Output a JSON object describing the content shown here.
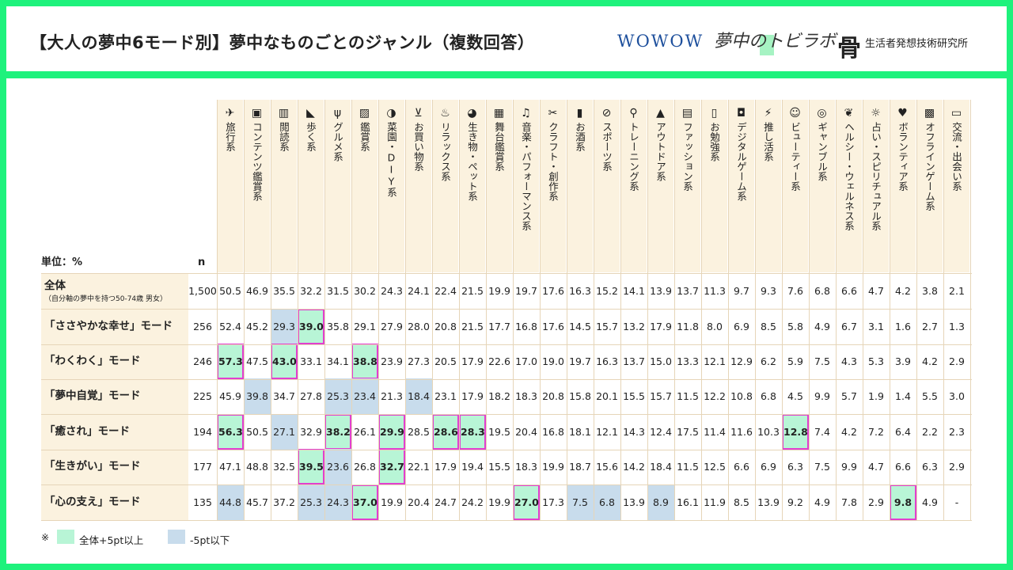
{
  "title": "【大人の夢中6モード別】夢中なものごとのジャンル（複数回答）",
  "logos": {
    "wowow": "WOWOW",
    "lab": "夢中のトビラボ",
    "hakuhodo_mark": "⻣",
    "hakuhodo": "生活者発想技術研究所"
  },
  "colors": {
    "frame": "#1ef27c",
    "header_bg": "#fbf2df",
    "high": "#b8f5d6",
    "low": "#c8dcec",
    "high_border": "#e23fcf"
  },
  "unit": "単位：%",
  "n_label": "n",
  "legend": {
    "note": "※",
    "high": "全体+5pt以上",
    "low": "-5pt以下"
  },
  "chart_data": {
    "type": "table",
    "columns": [
      {
        "label": "旅行系",
        "icon": "airplane-icon"
      },
      {
        "label": "コンテンツ鑑賞系",
        "icon": "film-icon"
      },
      {
        "label": "閲読系",
        "icon": "book-icon"
      },
      {
        "label": "歩く系",
        "icon": "shoe-icon"
      },
      {
        "label": "グルメ系",
        "icon": "cutlery-icon"
      },
      {
        "label": "鑑賞系",
        "icon": "picture-icon"
      },
      {
        "label": "菜園・DIY系",
        "icon": "watering-can-icon"
      },
      {
        "label": "お買い物系",
        "icon": "cart-icon"
      },
      {
        "label": "リラックス系",
        "icon": "hot-spring-icon"
      },
      {
        "label": "生き物・ペット系",
        "icon": "pet-icon"
      },
      {
        "label": "舞台鑑賞系",
        "icon": "theater-icon"
      },
      {
        "label": "音楽・パフォーマンス系",
        "icon": "music-note-icon"
      },
      {
        "label": "クラフト・創作系",
        "icon": "scissors-icon"
      },
      {
        "label": "お酒系",
        "icon": "beer-icon"
      },
      {
        "label": "スポーツ系",
        "icon": "racket-icon"
      },
      {
        "label": "トレーニング系",
        "icon": "runner-icon"
      },
      {
        "label": "アウトドア系",
        "icon": "mountain-icon"
      },
      {
        "label": "ファッション系",
        "icon": "shirt-icon"
      },
      {
        "label": "お勉強系",
        "icon": "notebook-icon"
      },
      {
        "label": "デジタルゲーム系",
        "icon": "gamepad-icon"
      },
      {
        "label": "推し活系",
        "icon": "penlight-icon"
      },
      {
        "label": "ビューティー系",
        "icon": "face-icon"
      },
      {
        "label": "ギャンブル系",
        "icon": "coins-icon"
      },
      {
        "label": "ヘルシー・ウェルネス系",
        "icon": "leaf-icon"
      },
      {
        "label": "占い・スピリチュアル系",
        "icon": "sun-icon"
      },
      {
        "label": "ボランティア系",
        "icon": "heart-hand-icon"
      },
      {
        "label": "オフラインゲーム系",
        "icon": "board-game-icon"
      },
      {
        "label": "交流・出会い系",
        "icon": "chat-icon"
      }
    ],
    "rows": [
      {
        "label": "全体",
        "sublabel": "（自分軸の夢中を持つ50-74歳 男女）",
        "n": "1,500",
        "values": [
          "50.5",
          "46.9",
          "35.5",
          "32.2",
          "31.5",
          "30.2",
          "24.3",
          "24.1",
          "22.4",
          "21.5",
          "19.9",
          "19.7",
          "17.6",
          "16.3",
          "15.2",
          "14.1",
          "13.9",
          "13.7",
          "11.3",
          "9.7",
          "9.3",
          "7.6",
          "6.8",
          "6.6",
          "4.7",
          "4.2",
          "3.8",
          "2.1"
        ],
        "high": [],
        "low": []
      },
      {
        "label": "「ささやかな幸せ」モード",
        "n": "256",
        "values": [
          "52.4",
          "45.2",
          "29.3",
          "39.0",
          "35.8",
          "29.1",
          "27.9",
          "28.0",
          "20.8",
          "21.5",
          "17.7",
          "16.8",
          "17.6",
          "14.5",
          "15.7",
          "13.2",
          "17.9",
          "11.8",
          "8.0",
          "6.9",
          "8.5",
          "5.8",
          "4.9",
          "6.7",
          "3.1",
          "1.6",
          "2.7",
          "1.3"
        ],
        "high": [
          3
        ],
        "low": [
          2
        ]
      },
      {
        "label": "「わくわく」モード",
        "n": "246",
        "values": [
          "57.3",
          "47.5",
          "43.0",
          "33.1",
          "34.1",
          "38.8",
          "23.9",
          "27.3",
          "20.5",
          "17.9",
          "22.6",
          "17.0",
          "19.0",
          "19.7",
          "16.3",
          "13.7",
          "15.0",
          "13.3",
          "12.1",
          "12.9",
          "6.2",
          "5.9",
          "7.5",
          "4.3",
          "5.3",
          "3.9",
          "4.2",
          "2.9"
        ],
        "high": [
          0,
          2,
          5
        ],
        "low": []
      },
      {
        "label": "「夢中自覚」モード",
        "n": "225",
        "values": [
          "45.9",
          "39.8",
          "34.7",
          "27.8",
          "25.3",
          "23.4",
          "21.3",
          "18.4",
          "23.1",
          "17.9",
          "18.2",
          "18.3",
          "20.8",
          "15.8",
          "20.1",
          "15.5",
          "15.7",
          "11.5",
          "12.2",
          "10.8",
          "6.8",
          "4.5",
          "9.9",
          "5.7",
          "1.9",
          "1.4",
          "5.5",
          "3.0"
        ],
        "high": [],
        "low": [
          1,
          4,
          5,
          7
        ]
      },
      {
        "label": "「癒され」モード",
        "n": "194",
        "values": [
          "56.3",
          "50.5",
          "27.1",
          "32.9",
          "38.2",
          "26.1",
          "29.9",
          "28.5",
          "28.6",
          "28.3",
          "19.5",
          "20.4",
          "16.8",
          "18.1",
          "12.1",
          "14.3",
          "12.4",
          "17.5",
          "11.4",
          "11.6",
          "10.3",
          "12.8",
          "7.4",
          "4.2",
          "7.2",
          "6.4",
          "2.2",
          "2.3"
        ],
        "high": [
          0,
          4,
          6,
          8,
          9,
          21
        ],
        "low": [
          2
        ]
      },
      {
        "label": "「生きがい」モード",
        "n": "177",
        "values": [
          "47.1",
          "48.8",
          "32.5",
          "39.5",
          "23.6",
          "26.8",
          "32.7",
          "22.1",
          "17.9",
          "19.4",
          "15.5",
          "18.3",
          "19.9",
          "18.7",
          "15.6",
          "14.2",
          "18.4",
          "11.5",
          "12.5",
          "6.6",
          "6.9",
          "6.3",
          "7.5",
          "9.9",
          "4.7",
          "6.6",
          "6.3",
          "2.9"
        ],
        "high": [
          3,
          6
        ],
        "low": [
          4
        ]
      },
      {
        "label": "「心の支え」モード",
        "n": "135",
        "values": [
          "44.8",
          "45.7",
          "37.2",
          "25.3",
          "24.3",
          "37.0",
          "19.9",
          "20.4",
          "24.7",
          "24.2",
          "19.9",
          "27.0",
          "17.3",
          "7.5",
          "6.8",
          "13.9",
          "8.9",
          "16.1",
          "11.9",
          "8.5",
          "13.9",
          "9.2",
          "4.9",
          "7.8",
          "2.9",
          "9.8",
          "4.9",
          "-"
        ],
        "high": [
          5,
          11,
          25
        ],
        "low": [
          0,
          3,
          4,
          13,
          14,
          16
        ]
      }
    ]
  }
}
